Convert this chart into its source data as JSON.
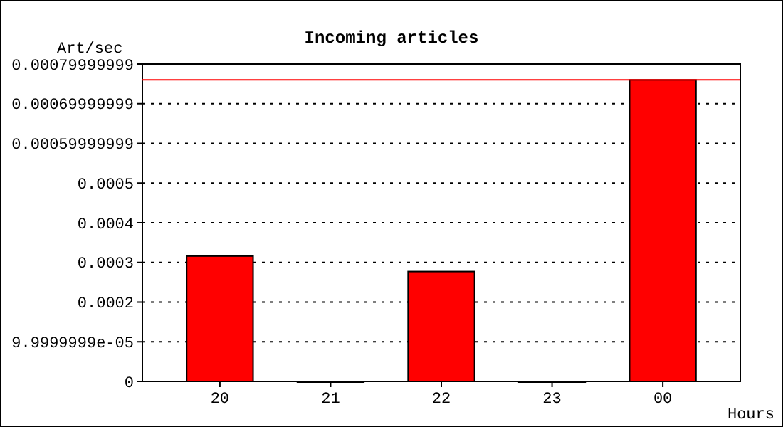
{
  "chart_data": {
    "type": "bar",
    "title": "Incoming articles",
    "xlabel": "Hours",
    "ylabel": "Art/sec",
    "categories": [
      "20",
      "21",
      "22",
      "23",
      "00"
    ],
    "values": [
      0.000316,
      0,
      0.000277,
      0,
      0.00076
    ],
    "color": "#ff0000",
    "ylim": [
      0,
      0.0008
    ],
    "yticks": [
      0,
      {
        "value": 0.0001,
        "label": "9.9999999e-05"
      },
      0.0002,
      0.0003,
      0.0004,
      0.0005,
      {
        "value": 0.00059999999,
        "label": "0.00059999999"
      },
      {
        "value": 0.00069999999,
        "label": "0.00069999999"
      },
      {
        "value": 0.00079999999,
        "label": "0.00079999999"
      }
    ],
    "ref_lines": [
      {
        "axis": "y",
        "value": 0.00076,
        "color": "#ff0000"
      }
    ],
    "grid": "y"
  }
}
